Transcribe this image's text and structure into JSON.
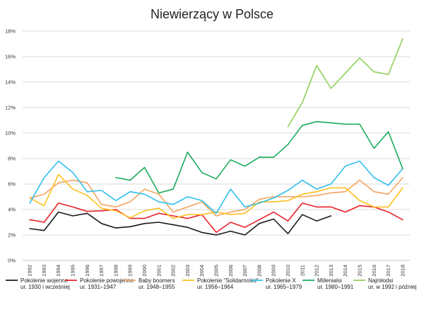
{
  "chart_data": {
    "type": "line",
    "title": "Niewierzący w Polsce",
    "xlabel": "",
    "ylabel": "",
    "ylim": [
      0,
      18
    ],
    "y_ticks": [
      "0%",
      "2%",
      "4%",
      "6%",
      "8%",
      "10%",
      "12%",
      "14%",
      "16%",
      "18%"
    ],
    "y_tick_values": [
      0,
      2,
      4,
      6,
      8,
      10,
      12,
      14,
      16,
      18
    ],
    "grid": true,
    "legend_position": "bottom",
    "x": [
      "1992",
      "1993",
      "1994",
      "1995",
      "1996",
      "1997",
      "1998",
      "1999",
      "2000",
      "2001",
      "2002",
      "2003",
      "2004",
      "2005",
      "2006",
      "2007",
      "2008",
      "2009",
      "2010",
      "2011",
      "2012",
      "2013",
      "2014",
      "2015",
      "2016",
      "2017",
      "2018"
    ],
    "series": [
      {
        "name": "Pokolenie wojenne\nur. 1930 i wcześniej",
        "color": "#1a1a1a",
        "values": [
          2.5,
          2.35,
          3.8,
          3.5,
          3.7,
          2.9,
          2.55,
          2.65,
          2.9,
          3.0,
          2.8,
          2.6,
          2.2,
          2.0,
          2.3,
          2.0,
          2.9,
          3.25,
          2.1,
          3.6,
          3.1,
          3.5,
          null,
          null,
          null,
          null,
          null
        ]
      },
      {
        "name": "Pokolenie powojenne\nur. 1931–1947",
        "color": "#e8222a",
        "values": [
          3.2,
          3.0,
          4.5,
          4.2,
          3.85,
          3.9,
          4.0,
          3.3,
          3.3,
          3.7,
          3.5,
          3.3,
          3.6,
          2.2,
          3.0,
          2.6,
          3.2,
          3.8,
          3.1,
          4.5,
          4.2,
          4.2,
          3.8,
          4.3,
          4.2,
          3.8,
          3.2
        ]
      },
      {
        "name": "Baby boomers\nur. 1948–1955",
        "color": "#f4a460",
        "values": [
          4.9,
          5.2,
          6.1,
          6.3,
          6.1,
          4.4,
          4.2,
          4.6,
          5.6,
          5.2,
          3.8,
          4.2,
          4.6,
          3.5,
          3.8,
          4.0,
          4.8,
          5.0,
          5.0,
          5.0,
          5.1,
          5.3,
          5.4,
          6.3,
          5.4,
          5.2,
          6.5
        ]
      },
      {
        "name": "Pokolenie \"Solidarności\"\nur. 1956–1964",
        "color": "#ffc020",
        "values": [
          4.9,
          4.3,
          6.75,
          5.6,
          5.1,
          4.1,
          3.9,
          3.35,
          3.9,
          4.1,
          3.3,
          3.6,
          3.6,
          3.8,
          3.6,
          3.7,
          4.6,
          4.6,
          4.7,
          5.2,
          5.4,
          5.7,
          5.7,
          4.7,
          4.2,
          4.2,
          5.7
        ]
      },
      {
        "name": "Pokolenie X\nur. 1965–1979",
        "color": "#2fbfea",
        "values": [
          4.5,
          6.5,
          7.8,
          6.9,
          5.4,
          5.5,
          4.7,
          5.4,
          5.2,
          4.6,
          4.4,
          5.0,
          4.7,
          3.7,
          5.6,
          4.2,
          4.5,
          4.9,
          5.5,
          6.3,
          5.6,
          6.0,
          7.4,
          7.8,
          6.5,
          5.9,
          7.2
        ]
      },
      {
        "name": "Millenialsi\nur. 1980–1991",
        "color": "#1aab5a",
        "values": [
          null,
          null,
          null,
          null,
          null,
          null,
          6.5,
          6.3,
          7.3,
          5.3,
          5.6,
          8.5,
          6.9,
          6.4,
          7.9,
          7.4,
          8.1,
          8.1,
          9.1,
          10.6,
          10.9,
          10.8,
          10.7,
          10.7,
          8.8,
          10.1,
          7.2
        ]
      },
      {
        "name": "Najmłodsi\nur. w 1992 i później",
        "color": "#90d05a",
        "values": [
          null,
          null,
          null,
          null,
          null,
          null,
          null,
          null,
          null,
          null,
          null,
          null,
          null,
          null,
          null,
          null,
          null,
          null,
          10.5,
          12.4,
          15.3,
          13.5,
          14.7,
          15.9,
          14.8,
          14.6,
          17.4
        ]
      }
    ]
  }
}
